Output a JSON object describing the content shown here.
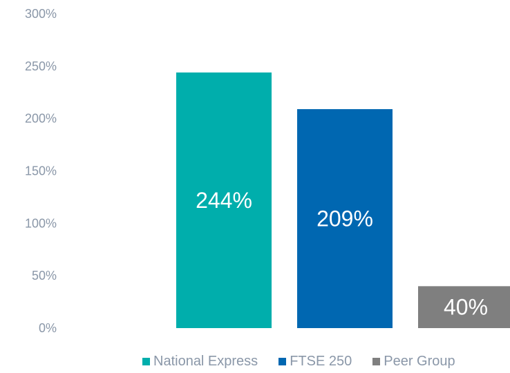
{
  "chart_data": {
    "type": "bar",
    "categories": [
      "National Express",
      "FTSE 250",
      "Peer Group"
    ],
    "values": [
      244,
      209,
      40
    ],
    "value_labels": [
      "244%",
      "209%",
      "40%"
    ],
    "colors": [
      "#00aeac",
      "#0067b1",
      "#7f7f7f"
    ],
    "y_ticks": [
      "0%",
      "50%",
      "100%",
      "150%",
      "200%",
      "250%",
      "300%"
    ],
    "ylim": [
      0,
      300
    ],
    "ytick_step": 50,
    "grid": false,
    "legend_position": "bottom",
    "legend": [
      {
        "label": "National Express",
        "color": "#00aeac"
      },
      {
        "label": "FTSE 250",
        "color": "#0067b1"
      },
      {
        "label": "Peer Group",
        "color": "#7f7f7f"
      }
    ]
  }
}
